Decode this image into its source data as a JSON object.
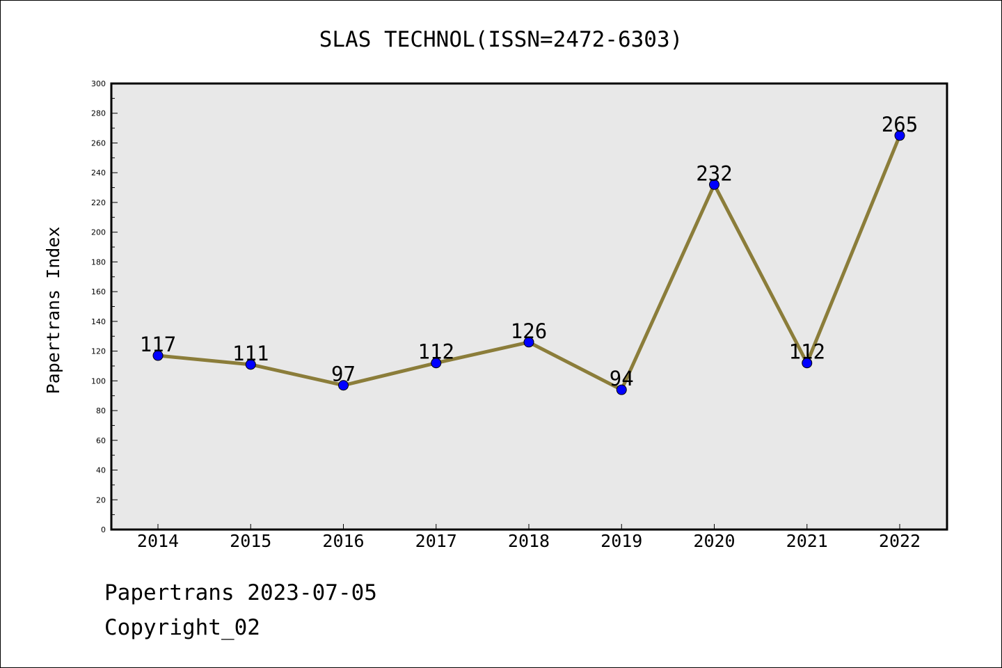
{
  "chart_data": {
    "type": "line",
    "title": "SLAS TECHNOL(ISSN=2472-6303)",
    "xlabel": "",
    "ylabel": "Papertrans Index",
    "categories": [
      "2014",
      "2015",
      "2016",
      "2017",
      "2018",
      "2019",
      "2020",
      "2021",
      "2022"
    ],
    "series": [
      {
        "values": [
          117,
          111,
          97,
          112,
          126,
          94,
          232,
          112,
          265
        ]
      }
    ],
    "ylim": [
      0,
      300
    ],
    "yticks": [
      0,
      20,
      40,
      60,
      80,
      100,
      120,
      140,
      160,
      180,
      200,
      220,
      240,
      260,
      280,
      300
    ],
    "grid": false,
    "line_color": "#8b7d3a",
    "marker_color": "#0000ff",
    "plot_background": "#e8e8e8"
  },
  "footer": {
    "line1": "Papertrans 2023-07-05",
    "line2": "Copyright_02"
  }
}
